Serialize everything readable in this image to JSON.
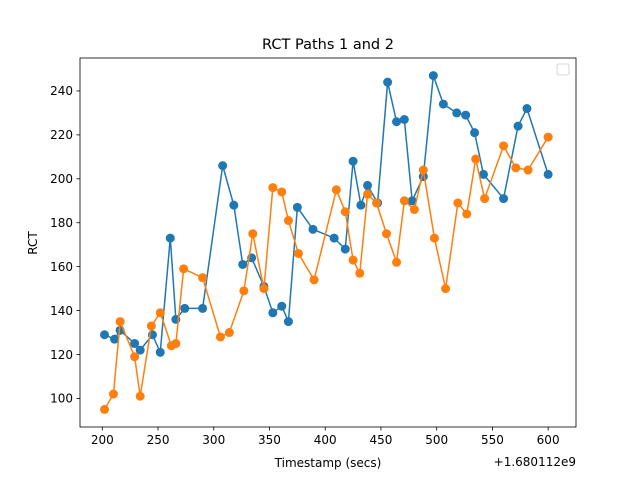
{
  "chart_data": {
    "type": "line",
    "title": "RCT Paths 1 and 2",
    "xlabel": "Timestamp (secs)",
    "ylabel": "RCT",
    "x_offset_label": "+1.680112e9",
    "xlim": [
      180,
      625
    ],
    "ylim": [
      87,
      255
    ],
    "xticks": [
      200,
      250,
      300,
      350,
      400,
      450,
      500,
      550,
      600
    ],
    "yticks": [
      100,
      120,
      140,
      160,
      180,
      200,
      220,
      240
    ],
    "grid": false,
    "legend": {
      "placement": "top-right",
      "entries": []
    },
    "series": [
      {
        "color": "#1f77b4",
        "x": [
          202,
          211,
          216,
          229,
          234,
          245,
          252,
          261,
          266,
          274,
          290,
          308,
          318,
          326,
          334,
          345,
          353,
          361,
          367,
          375,
          389,
          408,
          418,
          425,
          432,
          438,
          447,
          456,
          464,
          471,
          478,
          488,
          497,
          506,
          518,
          526,
          534,
          542,
          560,
          573,
          581,
          600
        ],
        "y": [
          129,
          127,
          131,
          125,
          122,
          129,
          121,
          173,
          136,
          141,
          141,
          206,
          188,
          161,
          164,
          151,
          139,
          142,
          135,
          187,
          177,
          173,
          168,
          208,
          188,
          197,
          189,
          244,
          226,
          227,
          190,
          201,
          247,
          234,
          230,
          229,
          221,
          202,
          191,
          224,
          232,
          202
        ]
      },
      {
        "color": "#ff7f0e",
        "x": [
          202,
          210,
          216,
          229,
          234,
          244,
          252,
          262,
          266,
          273,
          290,
          306,
          314,
          327,
          335,
          345,
          353,
          361,
          367,
          376,
          390,
          410,
          418,
          425,
          431,
          438,
          446,
          455,
          464,
          471,
          480,
          488,
          498,
          508,
          519,
          527,
          535,
          543,
          560,
          571,
          582,
          600
        ],
        "y": [
          95,
          102,
          135,
          119,
          101,
          133,
          139,
          124,
          125,
          159,
          155,
          128,
          130,
          149,
          175,
          150,
          196,
          194,
          181,
          166,
          154,
          195,
          185,
          163,
          157,
          193,
          189,
          175,
          162,
          190,
          186,
          204,
          173,
          150,
          189,
          184,
          209,
          191,
          215,
          205,
          204,
          219
        ]
      }
    ]
  }
}
